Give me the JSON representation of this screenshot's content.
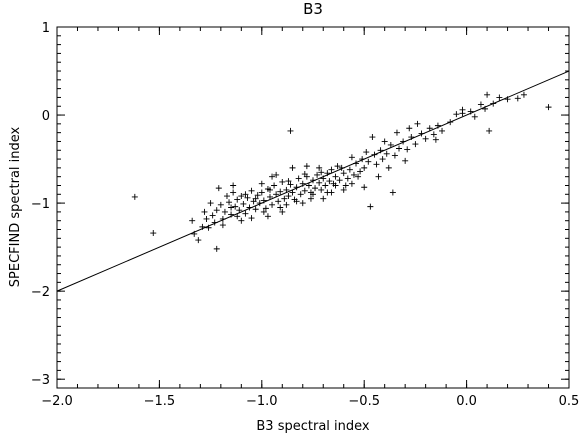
{
  "chart_data": {
    "type": "scatter",
    "title": "B3",
    "xlabel": "B3 spectral index",
    "ylabel": "SPECFIND spectral index",
    "xlim": [
      -2.0,
      0.5
    ],
    "ylim": [
      -3.1,
      1.0
    ],
    "x_ticks": [
      -2.0,
      -1.5,
      -1.0,
      -0.5,
      0.0,
      0.5
    ],
    "x_tick_labels": [
      "−2.0",
      "−1.5",
      "−1.0",
      "−0.5",
      "0.0",
      "0.5"
    ],
    "y_ticks": [
      1,
      0,
      -1,
      -2,
      -3
    ],
    "y_tick_labels": [
      "1",
      "0",
      "−1",
      "−2",
      "−3"
    ],
    "marker": "+",
    "grid": false,
    "fit_line": {
      "x": [
        -2.0,
        0.5
      ],
      "y": [
        -2.0,
        0.5
      ]
    },
    "points": [
      [
        -1.62,
        -0.93
      ],
      [
        -1.53,
        -1.34
      ],
      [
        -1.34,
        -1.2
      ],
      [
        -1.33,
        -1.35
      ],
      [
        -1.31,
        -1.42
      ],
      [
        -1.29,
        -1.27
      ],
      [
        -1.27,
        -1.18
      ],
      [
        -1.26,
        -1.28
      ],
      [
        -1.24,
        -1.14
      ],
      [
        -1.22,
        -1.52
      ],
      [
        -1.22,
        -1.08
      ],
      [
        -1.21,
        -0.83
      ],
      [
        -1.2,
        -1.02
      ],
      [
        -1.19,
        -1.18
      ],
      [
        -1.18,
        -1.1
      ],
      [
        -1.16,
        -0.99
      ],
      [
        -1.15,
        -1.13
      ],
      [
        -1.14,
        -0.88
      ],
      [
        -1.13,
        -1.04
      ],
      [
        -1.12,
        -0.96
      ],
      [
        -1.11,
        -1.08
      ],
      [
        -1.1,
        -0.92
      ],
      [
        -1.09,
        -1.01
      ],
      [
        -1.08,
        -1.12
      ],
      [
        -1.07,
        -0.94
      ],
      [
        -1.06,
        -1.05
      ],
      [
        -1.05,
        -0.86
      ],
      [
        -1.04,
        -0.98
      ],
      [
        -1.03,
        -1.07
      ],
      [
        -1.02,
        -0.91
      ],
      [
        -1.01,
        -1.0
      ],
      [
        -1.0,
        -0.88
      ],
      [
        -0.99,
        -0.97
      ],
      [
        -0.98,
        -1.06
      ],
      [
        -0.97,
        -0.84
      ],
      [
        -0.96,
        -0.93
      ],
      [
        -0.95,
        -1.02
      ],
      [
        -0.94,
        -0.8
      ],
      [
        -0.93,
        -0.9
      ],
      [
        -0.92,
        -0.98
      ],
      [
        -0.91,
        -0.87
      ],
      [
        -0.9,
        -0.76
      ],
      [
        -0.89,
        -0.95
      ],
      [
        -0.88,
        -0.85
      ],
      [
        -0.87,
        -0.92
      ],
      [
        -0.86,
        -0.79
      ],
      [
        -0.85,
        -0.88
      ],
      [
        -0.84,
        -0.96
      ],
      [
        -0.83,
        -0.82
      ],
      [
        -0.82,
        -0.72
      ],
      [
        -0.81,
        -0.9
      ],
      [
        -0.8,
        -0.78
      ],
      [
        -0.79,
        -0.86
      ],
      [
        -0.78,
        -0.7
      ],
      [
        -0.77,
        -0.8
      ],
      [
        -0.76,
        -0.88
      ],
      [
        -0.75,
        -0.74
      ],
      [
        -0.74,
        -0.83
      ],
      [
        -0.73,
        -0.68
      ],
      [
        -0.72,
        -0.77
      ],
      [
        -0.71,
        -0.85
      ],
      [
        -0.7,
        -0.72
      ],
      [
        -0.69,
        -0.8
      ],
      [
        -0.68,
        -0.66
      ],
      [
        -0.67,
        -0.75
      ],
      [
        -0.66,
        -0.62
      ],
      [
        -0.65,
        -0.78
      ],
      [
        -0.64,
        -0.7
      ],
      [
        -0.63,
        -0.58
      ],
      [
        -0.62,
        -0.74
      ],
      [
        -0.6,
        -0.66
      ],
      [
        -0.58,
        -0.72
      ],
      [
        -0.57,
        -0.62
      ],
      [
        -0.55,
        -0.68
      ],
      [
        -0.54,
        -0.55
      ],
      [
        -0.52,
        -0.64
      ],
      [
        -0.51,
        -0.5
      ],
      [
        -0.5,
        -0.6
      ],
      [
        -0.48,
        -0.53
      ],
      [
        -0.47,
        -1.04
      ],
      [
        -0.45,
        -0.45
      ],
      [
        -0.44,
        -0.56
      ],
      [
        -0.42,
        -0.4
      ],
      [
        -0.41,
        -0.5
      ],
      [
        -0.39,
        -0.44
      ],
      [
        -0.37,
        -0.34
      ],
      [
        -0.36,
        -0.88
      ],
      [
        -0.35,
        -0.46
      ],
      [
        -0.33,
        -0.38
      ],
      [
        -0.31,
        -0.3
      ],
      [
        -0.29,
        -0.39
      ],
      [
        -0.27,
        -0.25
      ],
      [
        -0.25,
        -0.33
      ],
      [
        -0.22,
        -0.21
      ],
      [
        -0.2,
        -0.27
      ],
      [
        -0.18,
        -0.15
      ],
      [
        -0.16,
        -0.22
      ],
      [
        -0.14,
        -0.12
      ],
      [
        -0.12,
        -0.18
      ],
      [
        -0.08,
        -0.08
      ],
      [
        -0.05,
        0.01
      ],
      [
        -0.02,
        0.02
      ],
      [
        0.02,
        0.04
      ],
      [
        0.04,
        -0.02
      ],
      [
        0.07,
        0.12
      ],
      [
        0.09,
        0.07
      ],
      [
        0.1,
        0.23
      ],
      [
        0.11,
        -0.18
      ],
      [
        0.13,
        0.13
      ],
      [
        0.16,
        0.2
      ],
      [
        0.2,
        0.18
      ],
      [
        0.25,
        0.19
      ],
      [
        0.28,
        0.23
      ],
      [
        0.4,
        0.09
      ],
      [
        -0.86,
        -0.18
      ],
      [
        -1.14,
        -0.8
      ],
      [
        -0.72,
        -0.6
      ],
      [
        -0.95,
        -0.7
      ],
      [
        -1.05,
        -1.17
      ],
      [
        -0.9,
        -1.1
      ],
      [
        -0.8,
        -1.0
      ],
      [
        -0.7,
        -0.95
      ],
      [
        -0.6,
        -0.85
      ],
      [
        -1.17,
        -0.92
      ],
      [
        -1.0,
        -0.78
      ],
      [
        -0.93,
        -0.68
      ],
      [
        -0.85,
        -0.6
      ],
      [
        -0.78,
        -0.58
      ],
      [
        -1.25,
        -1.0
      ],
      [
        -1.1,
        -1.2
      ],
      [
        -0.97,
        -1.15
      ],
      [
        -0.88,
        -1.02
      ],
      [
        -0.76,
        -0.95
      ],
      [
        -0.66,
        -0.88
      ],
      [
        -0.56,
        -0.78
      ],
      [
        -0.5,
        -0.82
      ],
      [
        -0.43,
        -0.7
      ],
      [
        -0.38,
        -0.6
      ],
      [
        -0.3,
        -0.52
      ],
      [
        -0.46,
        -0.25
      ],
      [
        -0.4,
        -0.3
      ],
      [
        -0.34,
        -0.2
      ],
      [
        -0.28,
        -0.15
      ],
      [
        -0.24,
        -0.1
      ],
      [
        -0.15,
        -0.28
      ],
      [
        -0.02,
        0.06
      ],
      [
        -1.28,
        -1.1
      ],
      [
        -1.23,
        -1.22
      ],
      [
        -1.19,
        -1.25
      ],
      [
        -1.15,
        -1.05
      ],
      [
        -1.12,
        -1.15
      ],
      [
        -1.08,
        -0.9
      ],
      [
        -1.03,
        -0.95
      ],
      [
        -0.99,
        -1.1
      ],
      [
        -0.96,
        -0.85
      ],
      [
        -0.91,
        -1.05
      ],
      [
        -0.87,
        -0.75
      ],
      [
        -0.83,
        -0.98
      ],
      [
        -0.79,
        -0.67
      ],
      [
        -0.75,
        -0.9
      ],
      [
        -0.71,
        -0.65
      ],
      [
        -0.68,
        -0.88
      ],
      [
        -0.64,
        -0.8
      ],
      [
        -0.61,
        -0.6
      ],
      [
        -0.59,
        -0.8
      ],
      [
        -0.56,
        -0.48
      ],
      [
        -0.53,
        -0.7
      ],
      [
        -0.49,
        -0.42
      ]
    ]
  }
}
